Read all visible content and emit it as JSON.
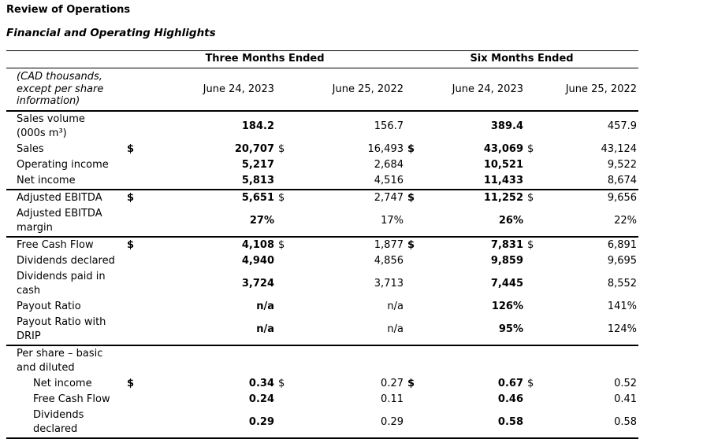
{
  "page": {
    "title": "Review of Operations",
    "subtitle": "Financial and Operating Highlights"
  },
  "table": {
    "currency_symbol": "$",
    "unit_note": "(CAD thousands,\nexcept per share\ninformation)",
    "groups": [
      {
        "label": "Three Months Ended"
      },
      {
        "label": "Six Months Ended"
      }
    ],
    "columns": [
      {
        "label": "June 24, 2023",
        "bold": true
      },
      {
        "label": "June 25, 2022",
        "bold": false
      },
      {
        "label": "June 24, 2023",
        "bold": true
      },
      {
        "label": "June 25, 2022",
        "bold": false
      }
    ],
    "rows": [
      {
        "label": "Sales volume\n(000s m³)",
        "indent": false,
        "dollar": false,
        "values": [
          "184.2",
          "156.7",
          "389.4",
          "457.9"
        ],
        "section_end": false
      },
      {
        "label": "Sales",
        "indent": false,
        "dollar": true,
        "values": [
          "20,707",
          "16,493",
          "43,069",
          "43,124"
        ],
        "section_end": false
      },
      {
        "label": "Operating income",
        "indent": false,
        "dollar": false,
        "values": [
          "5,217",
          "2,684",
          "10,521",
          "9,522"
        ],
        "section_end": false
      },
      {
        "label": "Net income",
        "indent": false,
        "dollar": false,
        "values": [
          "5,813",
          "4,516",
          "11,433",
          "8,674"
        ],
        "section_end": true
      },
      {
        "label": "Adjusted EBITDA",
        "indent": false,
        "dollar": true,
        "values": [
          "5,651",
          "2,747",
          "11,252",
          "9,656"
        ],
        "section_end": false
      },
      {
        "label": "Adjusted EBITDA\nmargin",
        "indent": false,
        "dollar": false,
        "values": [
          "27%",
          "17%",
          "26%",
          "22%"
        ],
        "section_end": true
      },
      {
        "label": "Free Cash Flow",
        "indent": false,
        "dollar": true,
        "values": [
          "4,108",
          "1,877",
          "7,831",
          "6,891"
        ],
        "section_end": false
      },
      {
        "label": "Dividends declared",
        "indent": false,
        "dollar": false,
        "values": [
          "4,940",
          "4,856",
          "9,859",
          "9,695"
        ],
        "section_end": false
      },
      {
        "label": "Dividends paid in\ncash",
        "indent": false,
        "dollar": false,
        "values": [
          "3,724",
          "3,713",
          "7,445",
          "8,552"
        ],
        "section_end": false
      },
      {
        "label": "Payout Ratio",
        "indent": false,
        "dollar": false,
        "values": [
          "n/a",
          "n/a",
          "126%",
          "141%"
        ],
        "section_end": false
      },
      {
        "label": "Payout Ratio with\nDRIP",
        "indent": false,
        "dollar": false,
        "values": [
          "n/a",
          "n/a",
          "95%",
          "124%"
        ],
        "section_end": true
      },
      {
        "label": "Per share – basic\nand diluted",
        "indent": false,
        "dollar": false,
        "values": [
          "",
          "",
          "",
          ""
        ],
        "section_end": false
      },
      {
        "label": "Net income",
        "indent": true,
        "dollar": true,
        "values": [
          "0.34",
          "0.27",
          "0.67",
          "0.52"
        ],
        "section_end": false
      },
      {
        "label": "Free Cash Flow",
        "indent": true,
        "dollar": false,
        "values": [
          "0.24",
          "0.11",
          "0.46",
          "0.41"
        ],
        "section_end": false
      },
      {
        "label": "Dividends\ndeclared",
        "indent": true,
        "dollar": false,
        "values": [
          "0.29",
          "0.29",
          "0.58",
          "0.58"
        ],
        "section_end": true
      }
    ]
  }
}
